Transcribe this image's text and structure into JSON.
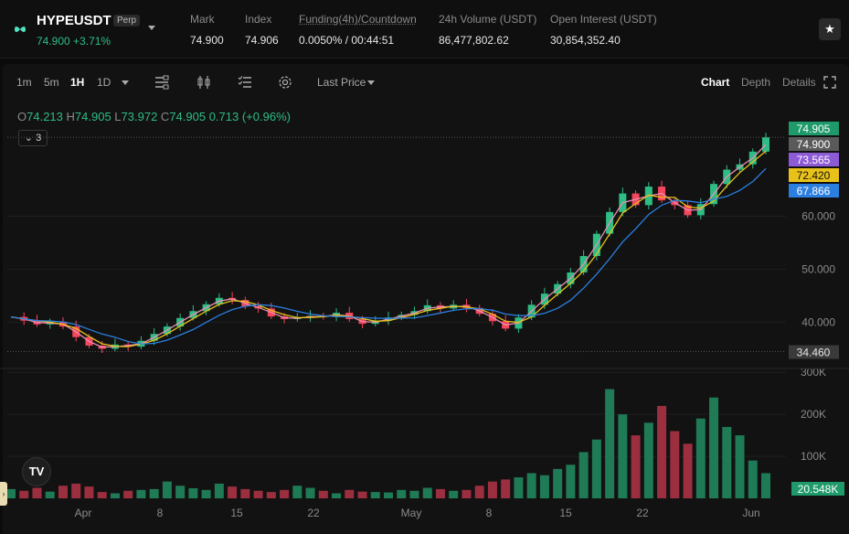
{
  "header": {
    "symbol": "HYPEUSDT",
    "badge": "Perp",
    "last_price": "74.900",
    "change_pct": "+3.71%",
    "stats": [
      {
        "label": "Mark",
        "value": "74.900"
      },
      {
        "label": "Index",
        "value": "74.906"
      },
      {
        "label": "Funding(4h)/Countdown",
        "value": "0.0050% / 00:44:51"
      },
      {
        "label": "24h Volume (USDT)",
        "value": "86,477,802.62"
      },
      {
        "label": "Open Interest (USDT)",
        "value": "30,854,352.40"
      }
    ],
    "favorite_icon": "star-icon"
  },
  "toolbar": {
    "timeframes": [
      "1m",
      "5m",
      "1H",
      "1D"
    ],
    "active_timeframe": "1H",
    "price_type": "Last Price",
    "tabs": [
      "Chart",
      "Depth",
      "Details"
    ],
    "active_tab": "Chart",
    "icons": [
      "indicators-icon",
      "candle-type-icon",
      "drawing-list-icon",
      "settings-icon",
      "fullscreen-icon"
    ]
  },
  "ohlc": {
    "o_label": "O",
    "o": "74.213",
    "h_label": "H",
    "h": "74.905",
    "l_label": "L",
    "l": "73.972",
    "c_label": "C",
    "c": "74.905",
    "change": "0.713 (+0.96%)"
  },
  "indicator_toggle": "3",
  "chart_data": {
    "type": "candlestick",
    "price_axis": [
      "60.000",
      "50.000",
      "40.000"
    ],
    "volume_axis": [
      "300K",
      "200K",
      "100K"
    ],
    "x_labels": [
      "Apr",
      "8",
      "15",
      "22",
      "May",
      "8",
      "15",
      "22",
      "Jun"
    ],
    "price_tags": [
      {
        "value": "74.905",
        "color": "#1f9a6a"
      },
      {
        "value": "74.900",
        "color": "#5a5a5a"
      },
      {
        "value": "73.565",
        "color": "#8e5bd6"
      },
      {
        "value": "72.420",
        "color": "#e8c21b"
      },
      {
        "value": "67.866",
        "color": "#2b7fe0"
      }
    ],
    "low_tag": "34.460",
    "volume_tag": "20.548K",
    "ma_colors": {
      "fast": "#e98fb0",
      "mid": "#e8c21b",
      "slow": "#2b7fe0"
    },
    "up_color": "#2ebd85",
    "down_color": "#f6465d",
    "close_series": [
      41.0,
      40.3,
      39.6,
      40.1,
      39.2,
      37.2,
      35.6,
      35.0,
      35.8,
      35.4,
      36.5,
      37.8,
      39.2,
      40.8,
      42.1,
      43.4,
      44.6,
      44.2,
      43.0,
      42.6,
      41.1,
      40.6,
      40.9,
      41.2,
      41.0,
      41.8,
      40.6,
      39.7,
      40.3,
      40.9,
      41.4,
      42.1,
      43.2,
      42.6,
      43.3,
      42.7,
      41.6,
      40.2,
      38.8,
      40.9,
      43.3,
      45.4,
      47.2,
      49.4,
      52.5,
      56.7,
      60.8,
      64.3,
      62.1,
      65.6,
      63.0,
      62.1,
      60.2,
      62.3,
      66.1,
      68.8,
      69.8,
      72.2,
      74.9
    ],
    "volume_series": [
      22,
      18,
      25,
      16,
      30,
      35,
      28,
      15,
      12,
      18,
      20,
      22,
      40,
      30,
      24,
      20,
      35,
      28,
      22,
      18,
      15,
      20,
      30,
      25,
      18,
      12,
      20,
      16,
      15,
      14,
      20,
      18,
      25,
      22,
      18,
      20,
      30,
      40,
      45,
      50,
      60,
      55,
      70,
      80,
      110,
      140,
      260,
      200,
      150,
      180,
      220,
      160,
      130,
      190,
      240,
      170,
      150,
      90,
      60
    ]
  }
}
